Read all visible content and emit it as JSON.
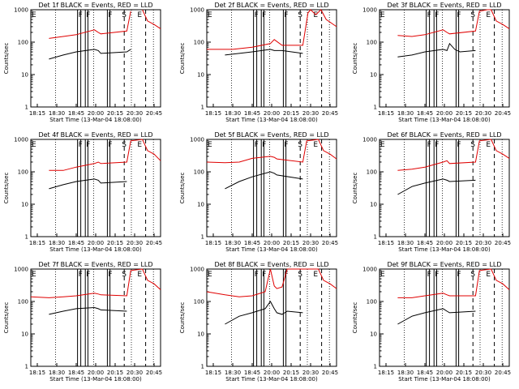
{
  "figure": {
    "x_ticks": [
      "18:15",
      "18:30",
      "18:45",
      "20:00",
      "20:15",
      "20:30",
      "20:45"
    ],
    "x_label": "Start Time (13-Mar-04 18:08:00)",
    "y_label": "Counts/sec",
    "y_ticks": [
      "1",
      "10",
      "100",
      "1000"
    ],
    "colors": {
      "events": "#000000",
      "lld": "#e00000"
    }
  },
  "chart_data": [
    {
      "type": "line",
      "title": "Det 1f BLACK = Events, RED = LLD",
      "yscale": "log",
      "ylim": [
        1,
        1000
      ],
      "series": [
        {
          "color": "#e00000",
          "x": [
            0.14,
            0.25,
            0.35,
            0.49,
            0.52,
            0.54,
            0.74,
            0.77,
            0.8,
            0.83,
            0.86,
            0.9,
            0.95,
            1.0
          ],
          "y": [
            130,
            150,
            170,
            240,
            200,
            180,
            220,
            900,
            null,
            null,
            1000,
            450,
            350,
            260
          ]
        },
        {
          "color": "#000000",
          "x": [
            0.14,
            0.25,
            0.35,
            0.49,
            0.52,
            0.54,
            0.74,
            0.77
          ],
          "y": [
            30,
            40,
            50,
            60,
            55,
            45,
            50,
            60
          ]
        }
      ]
    },
    {
      "type": "line",
      "title": "Det 2f BLACK = Events, RED = LLD",
      "yscale": "log",
      "ylim": [
        1,
        1000
      ],
      "series": [
        {
          "color": "#e00000",
          "x": [
            0.0,
            0.2,
            0.35,
            0.49,
            0.52,
            0.58,
            0.74,
            0.78,
            0.8,
            0.84,
            0.88,
            0.92,
            1.0
          ],
          "y": [
            60,
            60,
            70,
            90,
            120,
            80,
            80,
            800,
            1000,
            700,
            1000,
            500,
            300
          ]
        },
        {
          "color": "#000000",
          "x": [
            0.14,
            0.25,
            0.35,
            0.49,
            0.52,
            0.58,
            0.74
          ],
          "y": [
            40,
            45,
            50,
            60,
            55,
            55,
            45
          ]
        }
      ]
    },
    {
      "type": "line",
      "title": "Det 3f BLACK = Events, RED = LLD",
      "yscale": "log",
      "ylim": [
        1,
        1000
      ],
      "series": [
        {
          "color": "#e00000",
          "x": [
            0.14,
            0.25,
            0.35,
            0.49,
            0.52,
            0.54,
            0.74,
            0.77,
            0.83,
            0.86,
            0.9,
            0.95,
            1.0
          ],
          "y": [
            160,
            150,
            170,
            240,
            200,
            180,
            220,
            900,
            1000,
            1000,
            450,
            350,
            260
          ]
        },
        {
          "color": "#000000",
          "x": [
            0.14,
            0.25,
            0.35,
            0.49,
            0.52,
            0.54,
            0.58,
            0.62,
            0.74
          ],
          "y": [
            35,
            40,
            50,
            60,
            55,
            90,
            60,
            50,
            55
          ]
        }
      ]
    },
    {
      "type": "line",
      "title": "Det 4f BLACK = Events, RED = LLD",
      "yscale": "log",
      "ylim": [
        1,
        1000
      ],
      "series": [
        {
          "color": "#e00000",
          "x": [
            0.14,
            0.25,
            0.35,
            0.49,
            0.52,
            0.54,
            0.74,
            0.77,
            0.86,
            0.9,
            0.95,
            1.0
          ],
          "y": [
            110,
            110,
            140,
            180,
            200,
            180,
            200,
            900,
            1000,
            450,
            350,
            220
          ]
        },
        {
          "color": "#000000",
          "x": [
            0.14,
            0.25,
            0.35,
            0.49,
            0.52,
            0.54,
            0.74
          ],
          "y": [
            30,
            40,
            50,
            60,
            55,
            45,
            50
          ]
        }
      ]
    },
    {
      "type": "line",
      "title": "Det 5f BLACK = Events, RED = LLD",
      "yscale": "log",
      "ylim": [
        1,
        1000
      ],
      "series": [
        {
          "color": "#e00000",
          "x": [
            0.0,
            0.14,
            0.25,
            0.35,
            0.49,
            0.52,
            0.54,
            0.74,
            0.77,
            0.86,
            0.9,
            0.95,
            1.0
          ],
          "y": [
            200,
            190,
            200,
            260,
            300,
            280,
            250,
            200,
            900,
            1000,
            450,
            350,
            250
          ]
        },
        {
          "color": "#000000",
          "x": [
            0.14,
            0.25,
            0.35,
            0.49,
            0.52,
            0.54,
            0.74
          ],
          "y": [
            30,
            50,
            70,
            100,
            90,
            80,
            60
          ]
        }
      ]
    },
    {
      "type": "line",
      "title": "Det 6f BLACK = Events, RED = LLD",
      "yscale": "log",
      "ylim": [
        1,
        1000
      ],
      "series": [
        {
          "color": "#e00000",
          "x": [
            0.14,
            0.25,
            0.35,
            0.49,
            0.52,
            0.54,
            0.74,
            0.77,
            0.86,
            0.9,
            0.95,
            1.0
          ],
          "y": [
            110,
            120,
            140,
            200,
            220,
            180,
            200,
            900,
            1000,
            450,
            350,
            260
          ]
        },
        {
          "color": "#000000",
          "x": [
            0.14,
            0.25,
            0.35,
            0.49,
            0.52,
            0.54,
            0.74
          ],
          "y": [
            20,
            35,
            45,
            60,
            55,
            50,
            55
          ]
        }
      ]
    },
    {
      "type": "line",
      "title": "Det 7f BLACK = Events, RED = LLD",
      "yscale": "log",
      "ylim": [
        1,
        1000
      ],
      "series": [
        {
          "color": "#e00000",
          "x": [
            0.0,
            0.14,
            0.25,
            0.35,
            0.49,
            0.52,
            0.54,
            0.74,
            0.77,
            0.86,
            0.9,
            0.95,
            1.0
          ],
          "y": [
            140,
            130,
            140,
            150,
            180,
            170,
            160,
            150,
            900,
            1000,
            450,
            350,
            230
          ]
        },
        {
          "color": "#000000",
          "x": [
            0.14,
            0.25,
            0.35,
            0.49,
            0.52,
            0.54,
            0.74
          ],
          "y": [
            40,
            50,
            60,
            65,
            60,
            55,
            50
          ]
        }
      ]
    },
    {
      "type": "line",
      "title": "Det 8f BLACK = Events, RED = LLD",
      "yscale": "log",
      "ylim": [
        1,
        1000
      ],
      "series": [
        {
          "color": "#e00000",
          "x": [
            0.0,
            0.14,
            0.25,
            0.35,
            0.45,
            0.49,
            0.52,
            0.54,
            0.58,
            0.62,
            0.74,
            0.77,
            0.86,
            0.9,
            0.95,
            1.0
          ],
          "y": [
            200,
            160,
            140,
            150,
            200,
            1000,
            300,
            250,
            280,
            1000,
            1000,
            1000,
            1000,
            450,
            350,
            250
          ]
        },
        {
          "color": "#000000",
          "x": [
            0.14,
            0.25,
            0.35,
            0.45,
            0.49,
            0.52,
            0.54,
            0.58,
            0.62,
            0.74
          ],
          "y": [
            20,
            35,
            45,
            60,
            100,
            60,
            45,
            40,
            50,
            45
          ]
        }
      ]
    },
    {
      "type": "line",
      "title": "Det 9f BLACK = Events, RED = LLD",
      "yscale": "log",
      "ylim": [
        1,
        1000
      ],
      "series": [
        {
          "color": "#e00000",
          "x": [
            0.14,
            0.25,
            0.35,
            0.49,
            0.52,
            0.54,
            0.74,
            0.77,
            0.86,
            0.9,
            0.95,
            1.0
          ],
          "y": [
            130,
            130,
            150,
            180,
            160,
            150,
            150,
            900,
            1000,
            450,
            350,
            230
          ]
        },
        {
          "color": "#000000",
          "x": [
            0.14,
            0.25,
            0.35,
            0.49,
            0.52,
            0.54,
            0.74
          ],
          "y": [
            20,
            35,
            45,
            60,
            50,
            45,
            50
          ]
        }
      ]
    }
  ],
  "markers": {
    "events": [
      {
        "label": "E",
        "pos": 0.0,
        "style": "none"
      },
      {
        "label": "F",
        "pos": 0.36,
        "style": "solid"
      },
      {
        "label": "F",
        "pos": 0.42,
        "style": "solid"
      },
      {
        "label": "F",
        "pos": 0.59,
        "style": "solid"
      },
      {
        "label": "S",
        "pos": 0.695,
        "style": "none"
      },
      {
        "label": "E",
        "pos": 0.815,
        "style": "none"
      }
    ],
    "dotted": [
      0.19,
      0.485,
      0.775,
      0.945
    ],
    "solid_extra": [
      0.385,
      0.44,
      0.61
    ],
    "dashed": [
      0.72,
      0.885
    ]
  }
}
